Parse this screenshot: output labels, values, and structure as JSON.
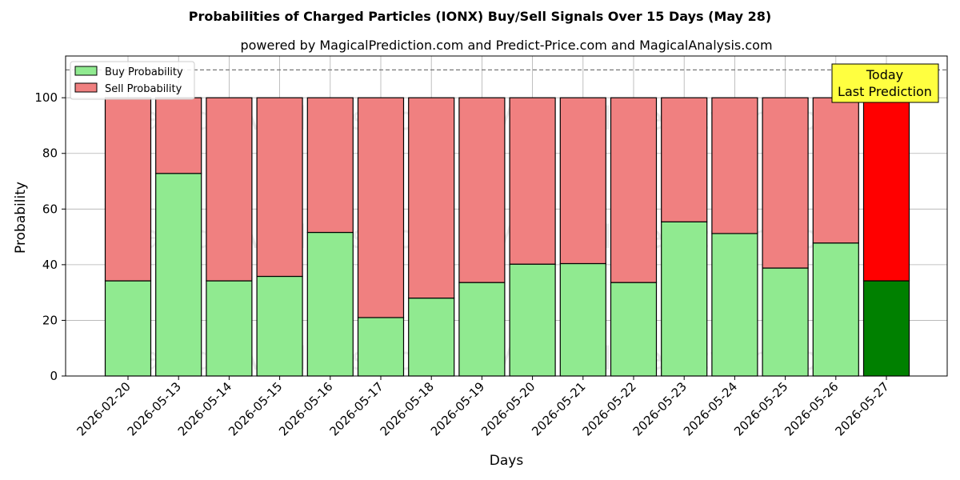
{
  "chart_data": {
    "type": "bar",
    "title": "Probabilities of Charged Particles (IONX) Buy/Sell Signals Over 15 Days (May 28)",
    "subtitle": "powered by MagicalPrediction.com and Predict-Price.com and MagicalAnalysis.com",
    "xlabel": "Days",
    "ylabel": "Probability",
    "ylim": [
      0,
      115
    ],
    "yticks": [
      0,
      20,
      40,
      60,
      80,
      100
    ],
    "threshold_line": 110,
    "grid": true,
    "legend_position": "top-left",
    "categories": [
      "2026-02-20",
      "2026-05-13",
      "2026-05-14",
      "2026-05-15",
      "2026-05-16",
      "2026-05-17",
      "2026-05-18",
      "2026-05-19",
      "2026-05-20",
      "2026-05-21",
      "2026-05-22",
      "2026-05-23",
      "2026-05-24",
      "2026-05-25",
      "2026-05-26",
      "2026-05-27"
    ],
    "series": [
      {
        "name": "Buy Probability",
        "color": "#90ea90",
        "values": [
          34.2,
          72.8,
          34.2,
          35.8,
          51.6,
          21.0,
          28.0,
          33.6,
          40.2,
          40.4,
          33.6,
          55.4,
          51.2,
          38.8,
          47.8,
          34.2
        ]
      },
      {
        "name": "Sell Probability",
        "color": "#f08080",
        "values": [
          65.8,
          27.2,
          65.8,
          64.2,
          48.4,
          79.0,
          72.0,
          66.4,
          59.8,
          59.6,
          66.4,
          44.6,
          48.8,
          61.2,
          52.2,
          65.8
        ]
      }
    ],
    "highlight": {
      "index": 15,
      "buy_color": "#008000",
      "sell_color": "#ff0000"
    },
    "annotation": {
      "lines": [
        "Today",
        "Last Prediction"
      ],
      "color": "#ffff40"
    },
    "watermarks": [
      "MagicalAnalysis.com",
      "MagicalPrediction.com"
    ]
  }
}
